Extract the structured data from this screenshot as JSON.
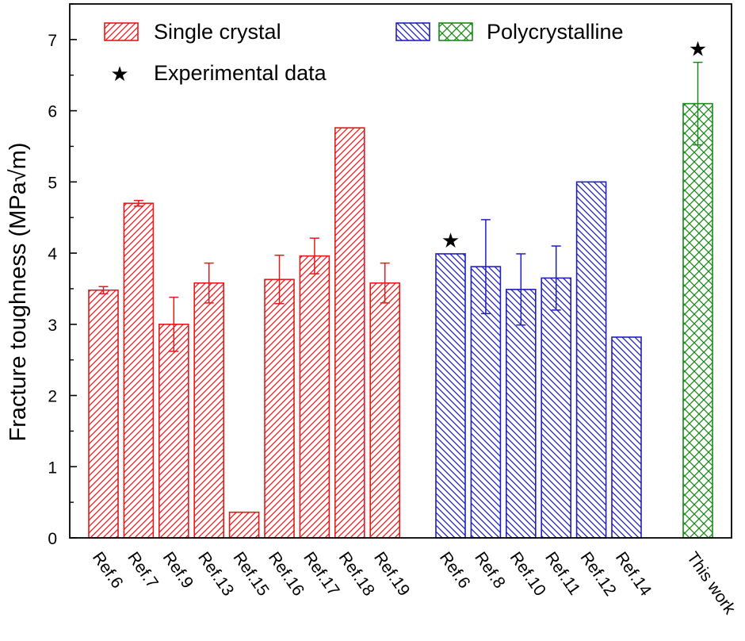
{
  "chart_data": {
    "type": "bar",
    "ylabel": "Fracture toughness (MPa√m)",
    "ylim": [
      0,
      7.5
    ],
    "yticks": [
      0,
      1,
      2,
      3,
      4,
      5,
      6,
      7
    ],
    "grid": false,
    "legend": {
      "position": "top",
      "entries": [
        {
          "label": "Single crystal",
          "color": "#e41a1c",
          "pattern": "diagonal-forward"
        },
        {
          "label": "Polycrystalline",
          "colors": [
            "#1f1fbf",
            "#1a8a1a"
          ],
          "pattern": "diagonal-back / crosshatch"
        },
        {
          "label": "Experimental data",
          "marker": "★"
        }
      ]
    },
    "series": [
      {
        "name": "Single crystal",
        "color": "#e41a1c",
        "categories": [
          "Ref.6",
          "Ref.7",
          "Ref.9",
          "Ref.13",
          "Ref.15",
          "Ref.16",
          "Ref.17",
          "Ref.18",
          "Ref.19"
        ],
        "values": [
          3.48,
          4.7,
          3.0,
          3.58,
          0.36,
          3.63,
          3.96,
          5.76,
          3.58
        ],
        "errors": [
          0.05,
          0.04,
          0.38,
          0.28,
          null,
          0.34,
          0.25,
          null,
          0.28
        ]
      },
      {
        "name": "Polycrystalline",
        "color": "#1f1fbf",
        "categories": [
          "Ref.6",
          "Ref.8",
          "Ref.10",
          "Ref.11",
          "Ref.12",
          "Ref.14"
        ],
        "values": [
          3.99,
          3.81,
          3.49,
          3.65,
          5.0,
          2.82
        ],
        "errors": [
          null,
          0.66,
          0.5,
          0.45,
          null,
          null
        ],
        "experimental": [
          true,
          false,
          false,
          false,
          false,
          false
        ]
      },
      {
        "name": "This work",
        "color": "#1a8a1a",
        "categories": [
          "This work"
        ],
        "values": [
          6.1
        ],
        "errors": [
          0.58
        ],
        "experimental": [
          true
        ]
      }
    ]
  }
}
